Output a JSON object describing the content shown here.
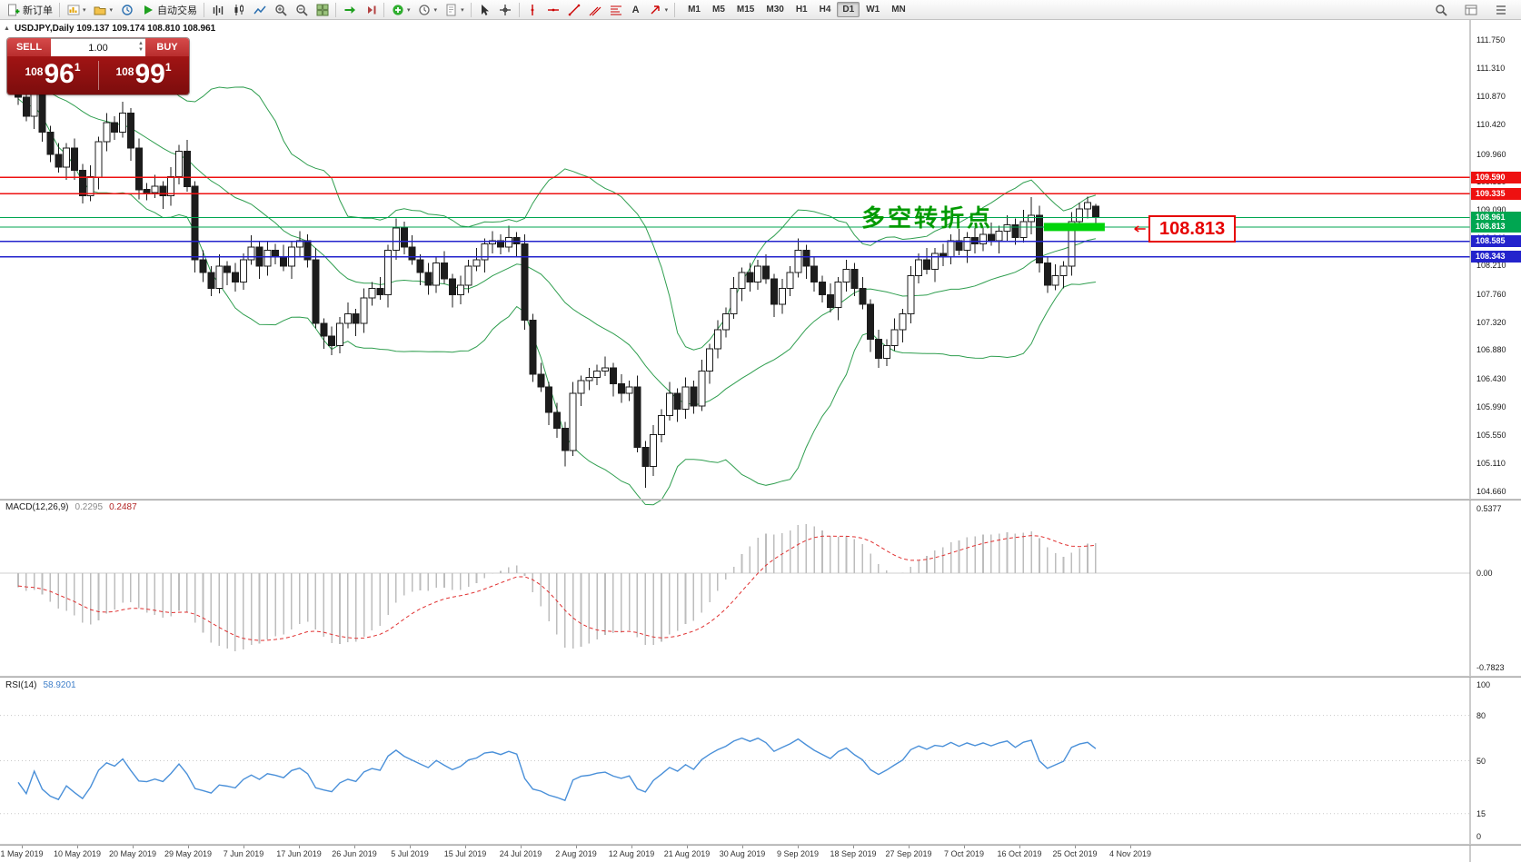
{
  "icons": {
    "caret": "▾",
    "up": "▲",
    "down": "▼",
    "collapse": "▲",
    "text_tool": "A"
  },
  "toolbar": {
    "new_order_label": "新订单",
    "auto_trading_label": "自动交易",
    "timeframes": [
      "M1",
      "M5",
      "M15",
      "M30",
      "H1",
      "H4",
      "D1",
      "W1",
      "MN"
    ],
    "active_timeframe": "D1"
  },
  "symbol_header": "USDJPY,Daily 109.137 109.174 108.810 108.961",
  "trade": {
    "sell_label": "SELL",
    "buy_label": "BUY",
    "volume": "1.00",
    "sell_price": {
      "prefix": "108",
      "big": "96",
      "sup": "1"
    },
    "buy_price": {
      "prefix": "108",
      "big": "99",
      "sup": "1"
    }
  },
  "annotation_text": "多空转折点",
  "callout_label": "108.813",
  "macd_panel": {
    "name": "MACD(12,26,9)",
    "value_main": "0.2295",
    "value_signal": "0.2487",
    "axis_labels": [
      0.5377,
      0,
      -0.7823
    ],
    "axis_texts": [
      "0.5377",
      "0.00",
      "-0.7823"
    ]
  },
  "rsi_panel": {
    "name": "RSI(14)",
    "value": "58.9201",
    "axis_values": [
      100,
      80,
      50,
      15,
      0
    ],
    "levels": [
      80,
      50,
      15
    ]
  },
  "colors": {
    "bull": "#ffffff",
    "bear": "#1c1c1c",
    "wick": "#1c1c1c",
    "band": "#2f9e4f",
    "macd_hist": "#bdbdbd",
    "macd_signal": "#e03030",
    "rsi": "#4a90d9",
    "annotation": "#009a00",
    "callout": "#e60000",
    "axis_text": "#1a1a1a"
  },
  "chart_data": {
    "type": "candlestick",
    "symbol": "USDJPY",
    "period": "Daily",
    "last_ohlc": {
      "open": "109.137",
      "high": "109.174",
      "low": "108.810",
      "close": "108.961"
    },
    "y_ticks": [
      "111.750",
      "111.310",
      "110.870",
      "110.420",
      "109.960",
      "109.530",
      "109.090",
      "108.640",
      "108.210",
      "107.760",
      "107.320",
      "106.880",
      "106.430",
      "105.990",
      "105.550",
      "105.110",
      "104.660"
    ],
    "y_range": [
      104.546,
      112.064
    ],
    "x_labels": [
      "1 May 2019",
      "10 May 2019",
      "20 May 2019",
      "29 May 2019",
      "7 Jun 2019",
      "17 Jun 2019",
      "26 Jun 2019",
      "5 Jul 2019",
      "15 Jul 2019",
      "24 Jul 2019",
      "2 Aug 2019",
      "12 Aug 2019",
      "21 Aug 2019",
      "30 Aug 2019",
      "9 Sep 2019",
      "18 Sep 2019",
      "27 Sep 2019",
      "7 Oct 2019",
      "16 Oct 2019",
      "25 Oct 2019",
      "4 Nov 2019"
    ],
    "levels": [
      {
        "price": 109.59,
        "tag": "109.590",
        "color": "#ee1111",
        "width": 1.6
      },
      {
        "price": 109.335,
        "tag": "109.335",
        "color": "#ee1111",
        "width": 1.6
      },
      {
        "price": 108.961,
        "tag": "108.961",
        "color": "#00a651",
        "width": 1.3
      },
      {
        "price": 108.813,
        "tag": "108.813",
        "color": "#00a651",
        "width": 1.3
      },
      {
        "price": 108.585,
        "tag": "108.585",
        "color": "#2323cc",
        "width": 1.6
      },
      {
        "price": 108.343,
        "tag": "108.343",
        "color": "#2323cc",
        "width": 1.6
      }
    ],
    "highlight": {
      "price": 108.813,
      "from_bar": 128,
      "to_bar": 134,
      "pad_right": 10,
      "height": 9,
      "color": "#00d40a"
    },
    "bollinger": {
      "period": 20,
      "deviation": 2
    },
    "indicators": [
      {
        "name": "MACD",
        "params": [
          12,
          26,
          9
        ],
        "shown_values": [
          0.2295,
          0.2487
        ]
      },
      {
        "name": "RSI",
        "params": [
          14
        ],
        "shown_value": 58.9201
      }
    ],
    "candles": [
      [
        111.1,
        111.2,
        110.73,
        110.85
      ],
      [
        110.85,
        111.03,
        110.47,
        110.55
      ],
      [
        110.55,
        110.98,
        110.35,
        110.9
      ],
      [
        110.9,
        111.05,
        110.15,
        110.3
      ],
      [
        110.3,
        110.4,
        109.83,
        109.95
      ],
      [
        109.95,
        110.13,
        109.67,
        109.75
      ],
      [
        109.75,
        110.13,
        109.55,
        110.05
      ],
      [
        110.05,
        110.2,
        109.55,
        109.7
      ],
      [
        109.7,
        109.8,
        109.18,
        109.3
      ],
      [
        109.3,
        109.78,
        109.22,
        109.6
      ],
      [
        109.6,
        110.23,
        109.4,
        110.15
      ],
      [
        110.15,
        110.6,
        110.0,
        110.45
      ],
      [
        110.45,
        110.55,
        110.18,
        110.3
      ],
      [
        110.3,
        110.78,
        110.22,
        110.6
      ],
      [
        110.6,
        110.68,
        109.85,
        110.05
      ],
      [
        110.05,
        110.2,
        109.25,
        109.4
      ],
      [
        109.4,
        109.5,
        109.23,
        109.35
      ],
      [
        109.35,
        109.63,
        109.27,
        109.45
      ],
      [
        109.45,
        109.53,
        109.1,
        109.3
      ],
      [
        109.3,
        109.75,
        109.15,
        109.6
      ],
      [
        109.6,
        110.1,
        109.48,
        110.0
      ],
      [
        110.0,
        110.18,
        109.37,
        109.45
      ],
      [
        109.45,
        109.53,
        108.1,
        108.3
      ],
      [
        108.3,
        108.45,
        107.95,
        108.1
      ],
      [
        108.1,
        108.2,
        107.73,
        107.85
      ],
      [
        107.85,
        108.38,
        107.77,
        108.2
      ],
      [
        108.2,
        108.28,
        107.9,
        108.1
      ],
      [
        108.1,
        108.25,
        107.8,
        107.95
      ],
      [
        107.95,
        108.4,
        107.83,
        108.3
      ],
      [
        108.3,
        108.68,
        108.22,
        108.5
      ],
      [
        108.5,
        108.58,
        108.0,
        108.2
      ],
      [
        108.2,
        108.6,
        108.05,
        108.45
      ],
      [
        108.45,
        108.55,
        108.23,
        108.35
      ],
      [
        108.35,
        108.53,
        108.12,
        108.2
      ],
      [
        108.2,
        108.58,
        108.0,
        108.5
      ],
      [
        108.5,
        108.75,
        108.35,
        108.6
      ],
      [
        108.6,
        108.7,
        108.18,
        108.3
      ],
      [
        108.3,
        108.48,
        107.22,
        107.3
      ],
      [
        107.3,
        107.38,
        106.9,
        107.1
      ],
      [
        107.1,
        107.25,
        106.8,
        106.95
      ],
      [
        106.95,
        107.4,
        106.83,
        107.3
      ],
      [
        107.3,
        107.63,
        107.22,
        107.45
      ],
      [
        107.45,
        107.53,
        107.1,
        107.3
      ],
      [
        107.3,
        107.85,
        107.15,
        107.7
      ],
      [
        107.7,
        107.95,
        107.58,
        107.85
      ],
      [
        107.85,
        108.03,
        107.67,
        107.75
      ],
      [
        107.75,
        108.53,
        107.55,
        108.45
      ],
      [
        108.45,
        108.95,
        108.3,
        108.8
      ],
      [
        108.8,
        108.9,
        108.38,
        108.5
      ],
      [
        108.5,
        108.68,
        108.22,
        108.3
      ],
      [
        108.3,
        108.38,
        107.9,
        108.1
      ],
      [
        108.1,
        108.25,
        107.75,
        107.9
      ],
      [
        107.9,
        108.35,
        107.78,
        108.25
      ],
      [
        108.25,
        108.43,
        107.92,
        108.0
      ],
      [
        108.0,
        108.08,
        107.55,
        107.75
      ],
      [
        107.75,
        108.05,
        107.6,
        107.9
      ],
      [
        107.9,
        108.3,
        107.78,
        108.2
      ],
      [
        108.2,
        108.48,
        108.12,
        108.3
      ],
      [
        108.3,
        108.63,
        108.1,
        108.55
      ],
      [
        108.55,
        108.75,
        108.4,
        108.6
      ],
      [
        108.6,
        108.7,
        108.38,
        108.5
      ],
      [
        108.5,
        108.83,
        108.42,
        108.65
      ],
      [
        108.65,
        108.73,
        108.35,
        108.55
      ],
      [
        108.55,
        108.7,
        107.2,
        107.35
      ],
      [
        107.35,
        107.45,
        106.38,
        106.5
      ],
      [
        106.5,
        106.68,
        106.22,
        106.3
      ],
      [
        106.3,
        106.38,
        105.7,
        105.9
      ],
      [
        105.9,
        106.05,
        105.5,
        105.65
      ],
      [
        105.65,
        105.75,
        105.05,
        105.3
      ],
      [
        105.3,
        106.38,
        105.22,
        106.2
      ],
      [
        106.2,
        106.48,
        106.0,
        106.4
      ],
      [
        106.4,
        106.6,
        106.25,
        106.45
      ],
      [
        106.45,
        106.65,
        106.33,
        106.55
      ],
      [
        106.55,
        106.78,
        106.47,
        106.6
      ],
      [
        106.6,
        106.68,
        106.15,
        106.35
      ],
      [
        106.35,
        106.5,
        106.05,
        106.2
      ],
      [
        106.2,
        106.4,
        106.08,
        106.3
      ],
      [
        106.3,
        106.48,
        105.27,
        105.35
      ],
      [
        105.35,
        105.45,
        104.72,
        105.05
      ],
      [
        105.05,
        105.7,
        104.9,
        105.55
      ],
      [
        105.55,
        105.95,
        105.43,
        105.85
      ],
      [
        105.85,
        106.38,
        105.77,
        106.2
      ],
      [
        106.2,
        106.28,
        105.75,
        105.95
      ],
      [
        105.95,
        106.45,
        105.8,
        106.3
      ],
      [
        106.3,
        106.4,
        105.88,
        106.0
      ],
      [
        106.0,
        106.73,
        105.92,
        106.55
      ],
      [
        106.55,
        106.98,
        106.35,
        106.9
      ],
      [
        106.9,
        107.35,
        106.75,
        107.2
      ],
      [
        107.2,
        107.55,
        107.08,
        107.45
      ],
      [
        107.45,
        108.03,
        107.37,
        107.85
      ],
      [
        107.85,
        108.18,
        107.65,
        108.1
      ],
      [
        108.1,
        108.25,
        107.8,
        107.95
      ],
      [
        107.95,
        108.3,
        107.83,
        108.2
      ],
      [
        108.2,
        108.38,
        107.92,
        108.0
      ],
      [
        108.0,
        108.08,
        107.4,
        107.6
      ],
      [
        107.6,
        108.0,
        107.45,
        107.85
      ],
      [
        107.85,
        108.2,
        107.73,
        108.1
      ],
      [
        108.1,
        108.63,
        108.02,
        108.45
      ],
      [
        108.45,
        108.53,
        108.0,
        108.2
      ],
      [
        108.2,
        108.35,
        107.8,
        107.95
      ],
      [
        107.95,
        108.05,
        107.63,
        107.75
      ],
      [
        107.75,
        107.93,
        107.47,
        107.55
      ],
      [
        107.55,
        108.03,
        107.35,
        107.95
      ],
      [
        107.95,
        108.3,
        107.8,
        108.15
      ],
      [
        108.15,
        108.25,
        107.73,
        107.85
      ],
      [
        107.85,
        108.03,
        107.52,
        107.6
      ],
      [
        107.6,
        107.68,
        106.85,
        107.05
      ],
      [
        107.05,
        107.2,
        106.6,
        106.75
      ],
      [
        106.75,
        107.05,
        106.63,
        106.95
      ],
      [
        106.95,
        107.38,
        106.87,
        107.2
      ],
      [
        107.2,
        107.53,
        107.0,
        107.45
      ],
      [
        107.45,
        108.2,
        107.3,
        108.05
      ],
      [
        108.05,
        108.4,
        107.93,
        108.3
      ],
      [
        108.3,
        108.48,
        108.07,
        108.15
      ],
      [
        108.15,
        108.48,
        107.95,
        108.4
      ],
      [
        108.4,
        108.55,
        108.2,
        108.35
      ],
      [
        108.35,
        108.7,
        108.23,
        108.6
      ],
      [
        108.6,
        108.78,
        108.37,
        108.45
      ],
      [
        108.45,
        108.73,
        108.25,
        108.65
      ],
      [
        108.65,
        108.8,
        108.4,
        108.55
      ],
      [
        108.55,
        108.8,
        108.43,
        108.7
      ],
      [
        108.7,
        108.88,
        108.52,
        108.6
      ],
      [
        108.6,
        108.83,
        108.4,
        108.75
      ],
      [
        108.75,
        109.0,
        108.6,
        108.85
      ],
      [
        108.85,
        108.95,
        108.53,
        108.65
      ],
      [
        108.65,
        109.08,
        108.57,
        108.9
      ],
      [
        108.9,
        109.28,
        108.7,
        109.0
      ],
      [
        109.0,
        109.15,
        108.1,
        108.25
      ],
      [
        108.25,
        108.35,
        107.78,
        107.9
      ],
      [
        107.9,
        108.23,
        107.82,
        108.05
      ],
      [
        108.05,
        108.28,
        107.85,
        108.2
      ],
      [
        108.2,
        109.05,
        108.05,
        108.9
      ],
      [
        108.9,
        109.2,
        108.78,
        109.1
      ],
      [
        109.1,
        109.29,
        108.95,
        109.2
      ],
      [
        109.137,
        109.174,
        108.81,
        108.961
      ]
    ]
  }
}
